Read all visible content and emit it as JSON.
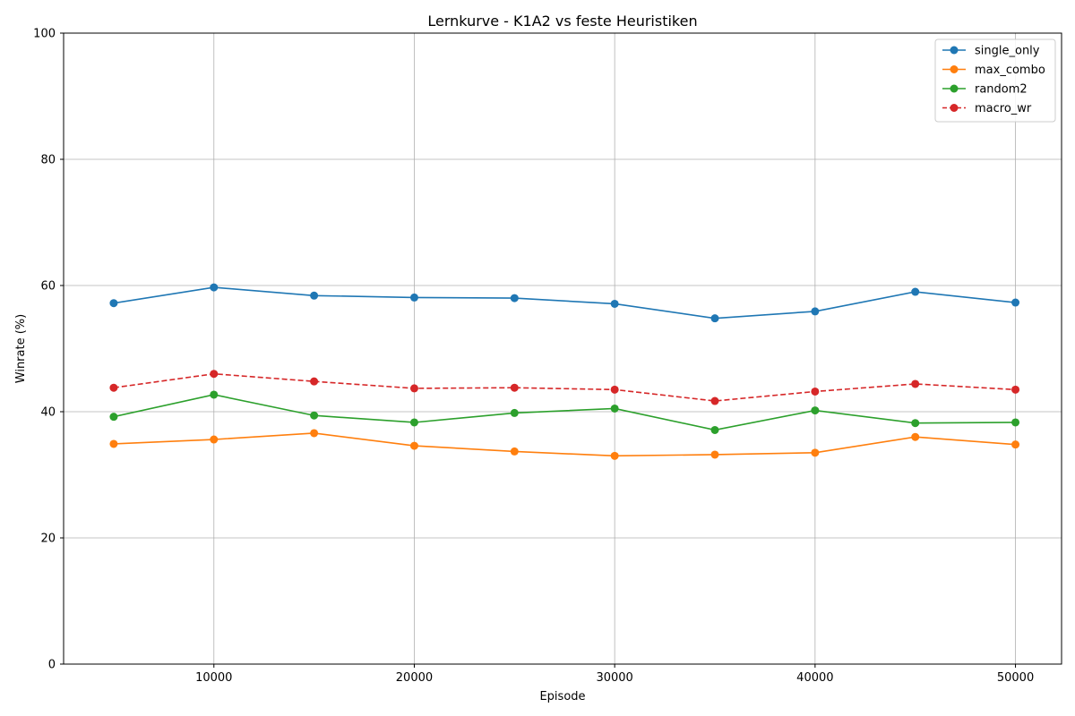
{
  "chart_data": {
    "type": "line",
    "title": "Lernkurve - K1A2 vs feste Heuristiken",
    "xlabel": "Episode",
    "ylabel": "Winrate (%)",
    "xlim": [
      2500,
      52300
    ],
    "ylim": [
      0,
      100
    ],
    "x_ticks": [
      10000,
      20000,
      30000,
      40000,
      50000
    ],
    "y_ticks": [
      0,
      20,
      40,
      60,
      80,
      100
    ],
    "grid": true,
    "legend_position": "top-right",
    "x": [
      5000,
      10000,
      15000,
      20000,
      25000,
      30000,
      35000,
      40000,
      45000,
      50000
    ],
    "series": [
      {
        "name": "single_only",
        "color": "#1f77b4",
        "dashed": false,
        "values": [
          57.2,
          59.7,
          58.4,
          58.1,
          58.0,
          57.1,
          54.8,
          55.9,
          59.0,
          57.3
        ]
      },
      {
        "name": "max_combo",
        "color": "#ff7f0e",
        "dashed": false,
        "values": [
          34.9,
          35.6,
          36.6,
          34.6,
          33.7,
          33.0,
          33.2,
          33.5,
          36.0,
          34.8
        ]
      },
      {
        "name": "random2",
        "color": "#2ca02c",
        "dashed": false,
        "values": [
          39.2,
          42.7,
          39.4,
          38.3,
          39.8,
          40.5,
          37.1,
          40.2,
          38.2,
          38.3
        ]
      },
      {
        "name": "macro_wr",
        "color": "#d62728",
        "dashed": true,
        "values": [
          43.8,
          46.0,
          44.8,
          43.7,
          43.8,
          43.5,
          41.7,
          43.2,
          44.4,
          43.5
        ]
      }
    ]
  }
}
